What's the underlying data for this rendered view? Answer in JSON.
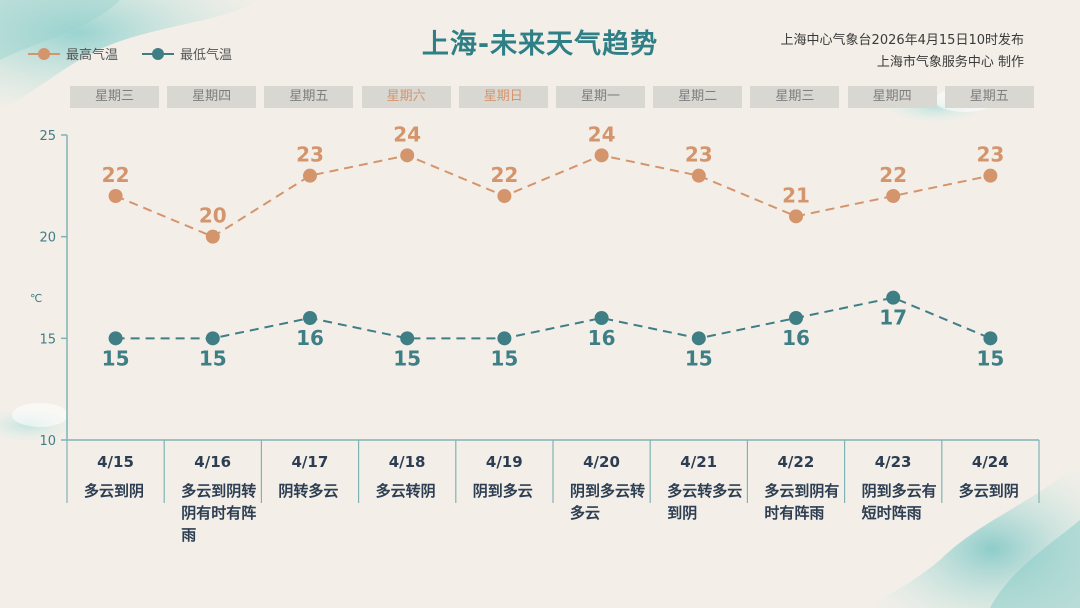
{
  "title": "上海-未来天气趋势",
  "issuer": {
    "line1": "上海中心气象台2026年4月15日10时发布",
    "line2": "上海市气象服务中心  制作"
  },
  "legend": {
    "high": "最高气温",
    "low": "最低气温"
  },
  "colors": {
    "high": "#d4956c",
    "low": "#3f7e85",
    "axis": "#7fb3b6",
    "text": "#2d3e52"
  },
  "weekdays": [
    "星期三",
    "星期四",
    "星期五",
    "星期六",
    "星期日",
    "星期一",
    "星期二",
    "星期三",
    "星期四",
    "星期五"
  ],
  "weekend_flags": [
    false,
    false,
    false,
    true,
    true,
    false,
    false,
    false,
    false,
    false
  ],
  "days": [
    {
      "date": "4/15",
      "desc": "多云到阴"
    },
    {
      "date": "4/16",
      "desc": "多云到阴转阴有时有阵雨"
    },
    {
      "date": "4/17",
      "desc": "阴转多云"
    },
    {
      "date": "4/18",
      "desc": "多云转阴"
    },
    {
      "date": "4/19",
      "desc": "阴到多云"
    },
    {
      "date": "4/20",
      "desc": "阴到多云转多云"
    },
    {
      "date": "4/21",
      "desc": "多云转多云到阴"
    },
    {
      "date": "4/22",
      "desc": "多云到阴有时有阵雨"
    },
    {
      "date": "4/23",
      "desc": "阴到多云有短时阵雨"
    },
    {
      "date": "4/24",
      "desc": "多云到阴"
    }
  ],
  "chart_data": {
    "type": "line",
    "title": "上海-未来天气趋势",
    "x": [
      "4/15",
      "4/16",
      "4/17",
      "4/18",
      "4/19",
      "4/20",
      "4/21",
      "4/22",
      "4/23",
      "4/24"
    ],
    "series": [
      {
        "name": "最高气温",
        "values": [
          22,
          20,
          23,
          24,
          22,
          24,
          23,
          21,
          22,
          23
        ]
      },
      {
        "name": "最低气温",
        "values": [
          15,
          15,
          16,
          15,
          15,
          16,
          15,
          16,
          17,
          15
        ]
      }
    ],
    "ylabel": "℃",
    "ylim": [
      10,
      25
    ],
    "yticks": [
      10,
      15,
      20,
      25
    ],
    "legend": "top-left",
    "grid": false
  }
}
